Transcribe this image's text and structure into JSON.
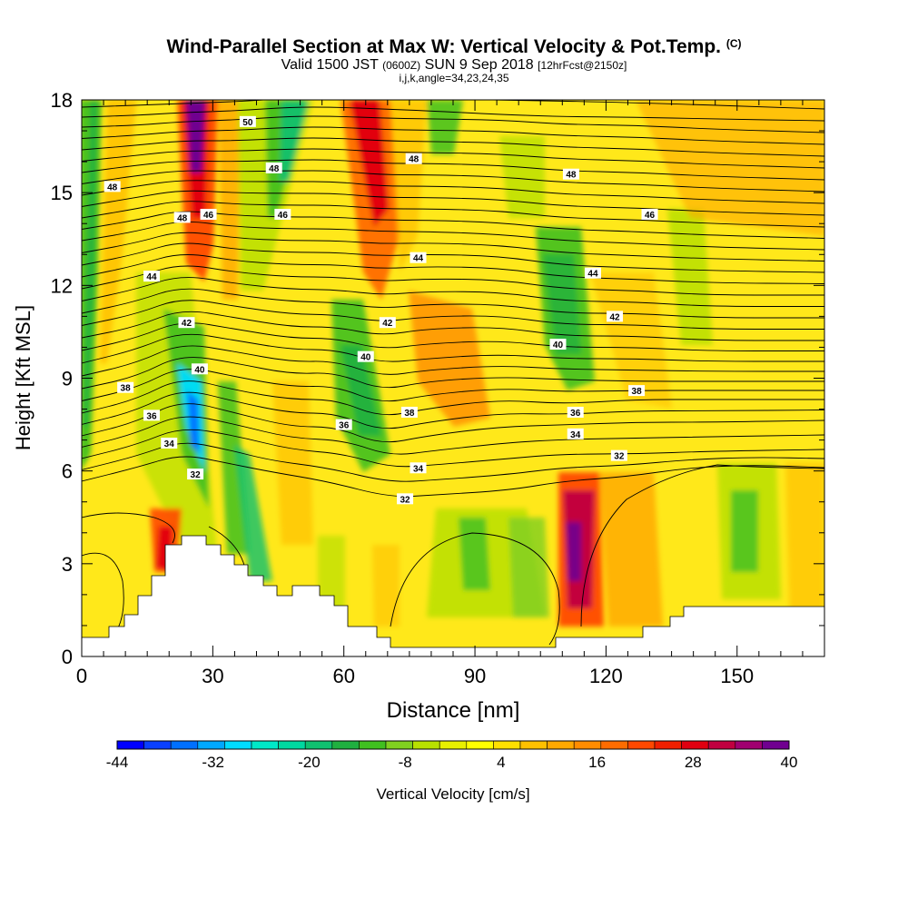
{
  "title": {
    "main": "Wind-Parallel Section at Max W: Vertical Velocity & Pot.Temp.",
    "copyright": "(C)",
    "valid_prefix": "Valid 1500 JST",
    "valid_zulu": "(0600Z)",
    "valid_date": "SUN 9 Sep 2018",
    "forecast": "[12hrFcst@2150z]",
    "indices": "i,j,k,angle=34,23,24,35"
  },
  "chart_data": {
    "type": "heatmap",
    "xlabel": "Distance [nm]",
    "ylabel": "Height [Kft MSL]",
    "xlim": [
      0,
      170
    ],
    "ylim": [
      0,
      18
    ],
    "x_ticks": [
      "0",
      "30",
      "60",
      "90",
      "120",
      "150"
    ],
    "y_ticks": [
      "0",
      "3",
      "6",
      "9",
      "12",
      "15",
      "18"
    ],
    "colorbar": {
      "label": "Vertical Velocity [cm/s]",
      "tick_labels": [
        "-44",
        "-32",
        "-20",
        "-8",
        "4",
        "16",
        "28",
        "40"
      ],
      "range": [
        -44,
        40
      ],
      "step": 4,
      "colors": [
        "#0000ff",
        "#0a40ff",
        "#0070ff",
        "#00a8ff",
        "#00dcff",
        "#00e8c8",
        "#00d8a0",
        "#10c070",
        "#20b040",
        "#40c020",
        "#80d020",
        "#b8e000",
        "#e8f000",
        "#ffff00",
        "#ffe000",
        "#ffc000",
        "#ffa800",
        "#ff8c00",
        "#ff6c00",
        "#ff4800",
        "#f02000",
        "#e00010",
        "#c00040",
        "#a00070",
        "#700090"
      ]
    },
    "theta_contour_labels": [
      {
        "x": 38,
        "y": 17.3,
        "label": "50"
      },
      {
        "x": 44,
        "y": 15.8,
        "label": "48"
      },
      {
        "x": 7,
        "y": 15.2,
        "label": "48"
      },
      {
        "x": 23,
        "y": 14.2,
        "label": "48"
      },
      {
        "x": 29,
        "y": 14.3,
        "label": "46"
      },
      {
        "x": 46,
        "y": 14.3,
        "label": "46"
      },
      {
        "x": 76,
        "y": 16.1,
        "label": "48"
      },
      {
        "x": 112,
        "y": 15.6,
        "label": "48"
      },
      {
        "x": 130,
        "y": 14.3,
        "label": "46"
      },
      {
        "x": 77,
        "y": 12.9,
        "label": "44"
      },
      {
        "x": 16,
        "y": 12.3,
        "label": "44"
      },
      {
        "x": 117,
        "y": 12.4,
        "label": "44"
      },
      {
        "x": 24,
        "y": 10.8,
        "label": "42"
      },
      {
        "x": 70,
        "y": 10.8,
        "label": "42"
      },
      {
        "x": 122,
        "y": 11.0,
        "label": "42"
      },
      {
        "x": 27,
        "y": 9.3,
        "label": "40"
      },
      {
        "x": 65,
        "y": 9.7,
        "label": "40"
      },
      {
        "x": 109,
        "y": 10.1,
        "label": "40"
      },
      {
        "x": 10,
        "y": 8.7,
        "label": "38"
      },
      {
        "x": 75,
        "y": 7.9,
        "label": "38"
      },
      {
        "x": 127,
        "y": 8.6,
        "label": "38"
      },
      {
        "x": 16,
        "y": 7.8,
        "label": "36"
      },
      {
        "x": 60,
        "y": 7.5,
        "label": "36"
      },
      {
        "x": 113,
        "y": 7.9,
        "label": "36"
      },
      {
        "x": 20,
        "y": 6.9,
        "label": "34"
      },
      {
        "x": 77,
        "y": 6.1,
        "label": "34"
      },
      {
        "x": 113,
        "y": 7.2,
        "label": "34"
      },
      {
        "x": 26,
        "y": 5.9,
        "label": "32"
      },
      {
        "x": 74,
        "y": 5.1,
        "label": "32"
      },
      {
        "x": 123,
        "y": 6.5,
        "label": "32"
      }
    ]
  },
  "colors": {
    "ground": "#ffffff",
    "contour": "#000000"
  }
}
